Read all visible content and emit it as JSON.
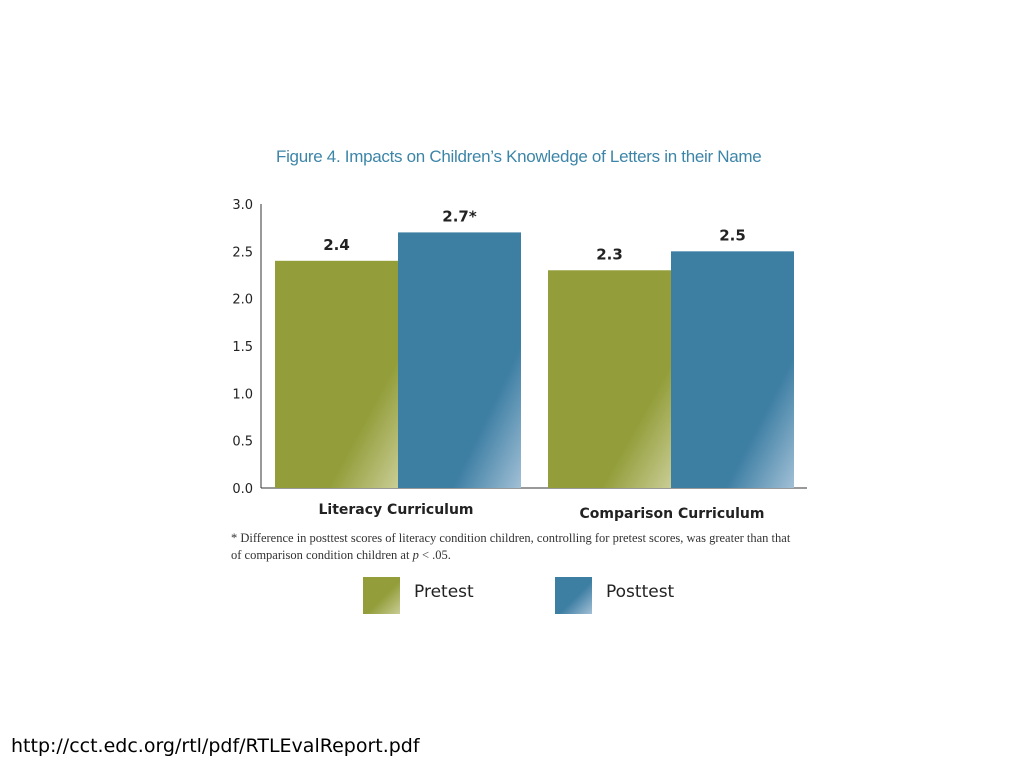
{
  "chart_data": {
    "type": "bar",
    "title": "Figure 4. Impacts on Children’s Knowledge of Letters in their Name",
    "categories": [
      "Literacy Curriculum",
      "Comparison Curriculum"
    ],
    "series": [
      {
        "name": "Pretest",
        "values": [
          2.4,
          2.3
        ],
        "labels": [
          "2.4",
          "2.3"
        ],
        "color": "#939e3b",
        "highlight": "#c9cd95"
      },
      {
        "name": "Posttest",
        "values": [
          2.7,
          2.5
        ],
        "labels": [
          "2.7*",
          "2.5"
        ],
        "color": "#3d7ea3",
        "highlight": "#a2c0d6"
      }
    ],
    "yticks": [
      "0.0",
      "0.5",
      "1.0",
      "1.5",
      "2.0",
      "2.5",
      "3.0"
    ],
    "ylim": [
      0,
      3.0
    ],
    "grid": false,
    "legend_position": "bottom"
  },
  "footnote": {
    "text_before": "* Difference in posttest scores of literacy condition children, controlling for pretest scores, was greater than that of comparison condition children at ",
    "p_symbol": "p",
    "text_after": " < .05."
  },
  "source": {
    "url": "http://cct.edc.org/rtl/pdf/RTLEvalReport.pdf"
  }
}
